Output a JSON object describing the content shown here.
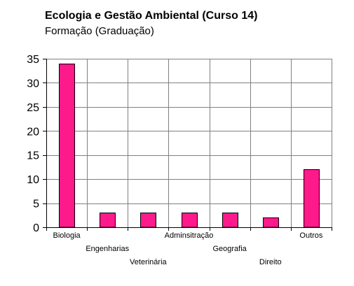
{
  "chart_data": {
    "type": "bar",
    "title": "Ecologia e Gestão Ambiental (Curso 14)",
    "subtitle": "Formação (Graduação)",
    "xlabel": "",
    "ylabel": "",
    "categories": [
      "Biologia",
      "Engenharias",
      "Veterinária",
      "Adminsitração",
      "Geografia",
      "Direito",
      "Outros"
    ],
    "values": [
      34,
      3,
      3,
      3,
      3,
      2,
      12
    ],
    "ylim": [
      0,
      35
    ],
    "yticks": [
      0,
      5,
      10,
      15,
      20,
      25,
      30,
      35
    ],
    "grid": true,
    "legend": "none",
    "colors": {
      "bar_fill": "#ff1a8c",
      "bar_stroke": "#000000",
      "grid": "#808080",
      "axis": "#000000"
    }
  }
}
